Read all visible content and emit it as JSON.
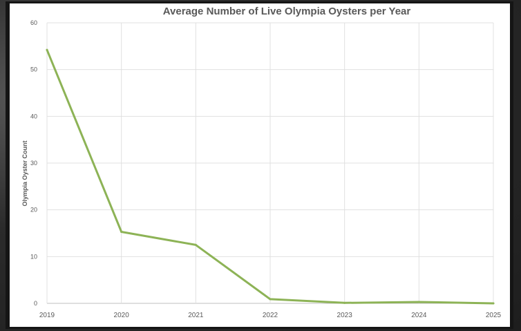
{
  "chart_data": {
    "type": "line",
    "title": "Average Number of Live Olympia Oysters per Year",
    "xlabel": "",
    "ylabel": "Olympia Oyster Count",
    "x": [
      "2019",
      "2020",
      "2021",
      "2022",
      "2023",
      "2024",
      "2025"
    ],
    "series": [
      {
        "values": [
          54.2,
          15.3,
          12.5,
          0.9,
          0.1,
          0.3,
          0.0
        ],
        "color": "#8db356"
      }
    ],
    "ylim": [
      0,
      60
    ],
    "yticks": [
      "0",
      "10",
      "20",
      "30",
      "40",
      "50",
      "60"
    ],
    "grid": true,
    "legend": "none"
  }
}
